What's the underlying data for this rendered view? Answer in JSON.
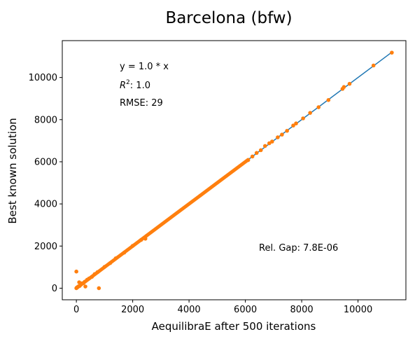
{
  "chart_data": {
    "type": "scatter",
    "title": "Barcelona (bfw)",
    "xlabel": "AequilibraE after 500 iterations",
    "ylabel": "Best known solution",
    "xlim": [
      -500,
      11700
    ],
    "ylim": [
      -550,
      11750
    ],
    "xticks": [
      0,
      2000,
      4000,
      6000,
      8000,
      10000
    ],
    "yticks": [
      0,
      2000,
      4000,
      6000,
      8000,
      10000
    ],
    "grid": false,
    "annotations": {
      "equation": "y = 1.0 * x",
      "r2_label": "R",
      "r2_sup": "2",
      "r2_value": ":  1.0",
      "rmse": "RMSE: 29",
      "gap": "Rel. Gap: 7.8E-06"
    },
    "fit_line": {
      "x": [
        0,
        11200
      ],
      "slope": 1.0,
      "color": "#1f77b4"
    },
    "marker_color": "#ff7f0e",
    "dense_ranges": [
      [
        0,
        2500
      ],
      [
        2500,
        4400
      ],
      [
        4400,
        6100
      ]
    ],
    "points": [
      [
        0,
        0
      ],
      [
        10,
        20
      ],
      [
        30,
        40
      ],
      [
        50,
        60
      ],
      [
        80,
        90
      ],
      [
        120,
        110
      ],
      [
        160,
        170
      ],
      [
        200,
        230
      ],
      [
        250,
        240
      ],
      [
        300,
        310
      ],
      [
        380,
        400
      ],
      [
        450,
        460
      ],
      [
        550,
        540
      ],
      [
        650,
        670
      ],
      [
        750,
        760
      ],
      [
        0,
        790
      ],
      [
        800,
        0
      ],
      [
        100,
        280
      ],
      [
        320,
        80
      ],
      [
        1000,
        1010
      ],
      [
        1200,
        1190
      ],
      [
        1400,
        1420
      ],
      [
        1700,
        1690
      ],
      [
        2000,
        2010
      ],
      [
        2300,
        2290
      ],
      [
        2450,
        2350
      ],
      [
        6100,
        6080
      ],
      [
        6250,
        6250
      ],
      [
        6400,
        6420
      ],
      [
        6550,
        6550
      ],
      [
        6700,
        6750
      ],
      [
        6850,
        6880
      ],
      [
        6950,
        6960
      ],
      [
        7150,
        7160
      ],
      [
        7300,
        7290
      ],
      [
        7480,
        7470
      ],
      [
        7700,
        7720
      ],
      [
        7800,
        7820
      ],
      [
        8050,
        8060
      ],
      [
        8300,
        8320
      ],
      [
        8600,
        8590
      ],
      [
        8950,
        8930
      ],
      [
        9450,
        9460
      ],
      [
        9500,
        9550
      ],
      [
        9700,
        9700
      ],
      [
        10550,
        10570
      ],
      [
        11200,
        11180
      ]
    ]
  }
}
